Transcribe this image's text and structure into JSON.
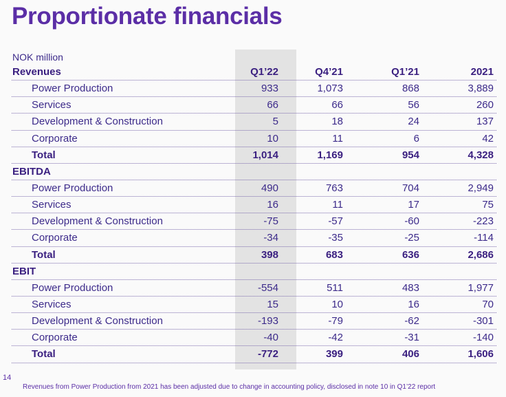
{
  "title": "Proportionate financials",
  "unit": "NOK million",
  "columns": [
    "Q1’22",
    "Q4’21",
    "Q1’21",
    "2021"
  ],
  "rows": [
    {
      "kind": "header",
      "label": "Revenues"
    },
    {
      "kind": "sub",
      "label": "Power Production",
      "values": [
        "933",
        "1,073",
        "868",
        "3,889"
      ]
    },
    {
      "kind": "sub",
      "label": "Services",
      "values": [
        "66",
        "66",
        "56",
        "260"
      ]
    },
    {
      "kind": "sub",
      "label": "Development & Construction",
      "values": [
        "5",
        "18",
        "24",
        "137"
      ]
    },
    {
      "kind": "sub",
      "label": "Corporate",
      "values": [
        "10",
        "11",
        "6",
        "42"
      ]
    },
    {
      "kind": "total",
      "label": "Total",
      "values": [
        "1,014",
        "1,169",
        "954",
        "4,328"
      ]
    },
    {
      "kind": "section",
      "label": "EBITDA"
    },
    {
      "kind": "sub",
      "label": "Power Production",
      "values": [
        "490",
        "763",
        "704",
        "2,949"
      ]
    },
    {
      "kind": "sub",
      "label": "Services",
      "values": [
        "16",
        "11",
        "17",
        "75"
      ]
    },
    {
      "kind": "sub",
      "label": "Development & Construction",
      "values": [
        "-75",
        "-57",
        "-60",
        "-223"
      ]
    },
    {
      "kind": "sub",
      "label": "Corporate",
      "values": [
        "-34",
        "-35",
        "-25",
        "-114"
      ]
    },
    {
      "kind": "total",
      "label": "Total",
      "values": [
        "398",
        "683",
        "636",
        "2,686"
      ]
    },
    {
      "kind": "section",
      "label": "EBIT"
    },
    {
      "kind": "sub",
      "label": "Power Production",
      "values": [
        "-554",
        "511",
        "483",
        "1,977"
      ]
    },
    {
      "kind": "sub",
      "label": "Services",
      "values": [
        "15",
        "10",
        "16",
        "70"
      ]
    },
    {
      "kind": "sub",
      "label": "Development & Construction",
      "values": [
        "-193",
        "-79",
        "-62",
        "-301"
      ]
    },
    {
      "kind": "sub",
      "label": "Corporate",
      "values": [
        "-40",
        "-42",
        "-31",
        "-140"
      ]
    },
    {
      "kind": "total",
      "label": "Total",
      "values": [
        "-772",
        "399",
        "406",
        "1,606"
      ]
    }
  ],
  "page_number": "14",
  "footnote": "Revenues from Power Production from 2021 has been adjusted due to change in accounting policy, disclosed in note 10 in Q1’22 report",
  "colors": {
    "title": "#5b2ea6",
    "text": "#3c2a8a",
    "highlight": "#e3e3e3"
  }
}
